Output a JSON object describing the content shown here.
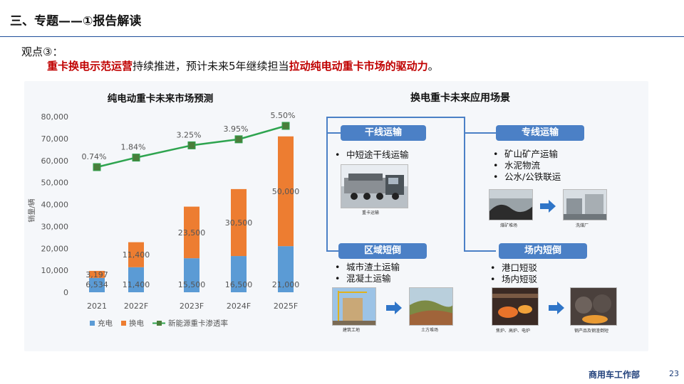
{
  "header": {
    "title": "三、专题——①报告解读"
  },
  "viewpoint": {
    "label": "观点③：",
    "red1": "重卡换电示范运营",
    "mid": "持续推进，预计未来5年继续担当",
    "red2": "拉动纯电动重卡市场的驱动力",
    "end": "。"
  },
  "chart_data": {
    "type": "bar",
    "title": "纯电动重卡未来市场预测",
    "ylabel": "销量/辆",
    "categories": [
      "2021",
      "2022F",
      "2023F",
      "2024F",
      "2025F"
    ],
    "ylim": [
      0,
      80000
    ],
    "yticks": [
      "0",
      "10,000",
      "20,000",
      "30,000",
      "40,000",
      "50,000",
      "60,000",
      "70,000",
      "80,000"
    ],
    "series": [
      {
        "name": "充电",
        "values": [
          6534,
          11400,
          15500,
          16500,
          21000
        ],
        "labels": [
          "6,534",
          "11,400",
          "15,500",
          "16,500",
          "21,000"
        ],
        "color": "#5b9bd5"
      },
      {
        "name": "换电",
        "values": [
          3197,
          11400,
          23500,
          30500,
          50000
        ],
        "labels": [
          "3,197",
          "11,400",
          "23,500",
          "30,500",
          "50,000"
        ],
        "color": "#ed7d31"
      }
    ],
    "line": {
      "name": "新能源重卡渗透率",
      "values": [
        0.74,
        1.84,
        3.25,
        3.95,
        5.5
      ],
      "labels": [
        "0.74%",
        "1.84%",
        "3.25%",
        "3.95%",
        "5.50%"
      ],
      "color": "#2ea44f",
      "marker": "#4a7e3b"
    },
    "legend": "bottom",
    "grid": false
  },
  "scenarios": {
    "title": "换电重卡未来应用场景",
    "items": [
      {
        "label": "干线运输",
        "bullets": [
          "中短途干线运输"
        ],
        "captions": [
          "重卡运输"
        ]
      },
      {
        "label": "专线运输",
        "bullets": [
          "矿山矿产运输",
          "水泥物流",
          "公水/公铁联运"
        ],
        "captions": [
          "煤矿堆场",
          "洗煤厂"
        ]
      },
      {
        "label": "区域短倒",
        "bullets": [
          "城市渣土运输",
          "混凝土运输"
        ],
        "captions": [
          "建筑工地",
          "土方堆场"
        ]
      },
      {
        "label": "场内短倒",
        "bullets": [
          "港口短驳",
          "场内短驳"
        ],
        "captions": [
          "焦炉、高炉、电炉",
          "钢产品及钢渣倒短"
        ]
      }
    ]
  },
  "colors": {
    "accent": "#4b80c6",
    "red": "#c00000",
    "brand": "#1f3f7a"
  },
  "footer": {
    "brand": "商用车工作部",
    "page": "23"
  }
}
